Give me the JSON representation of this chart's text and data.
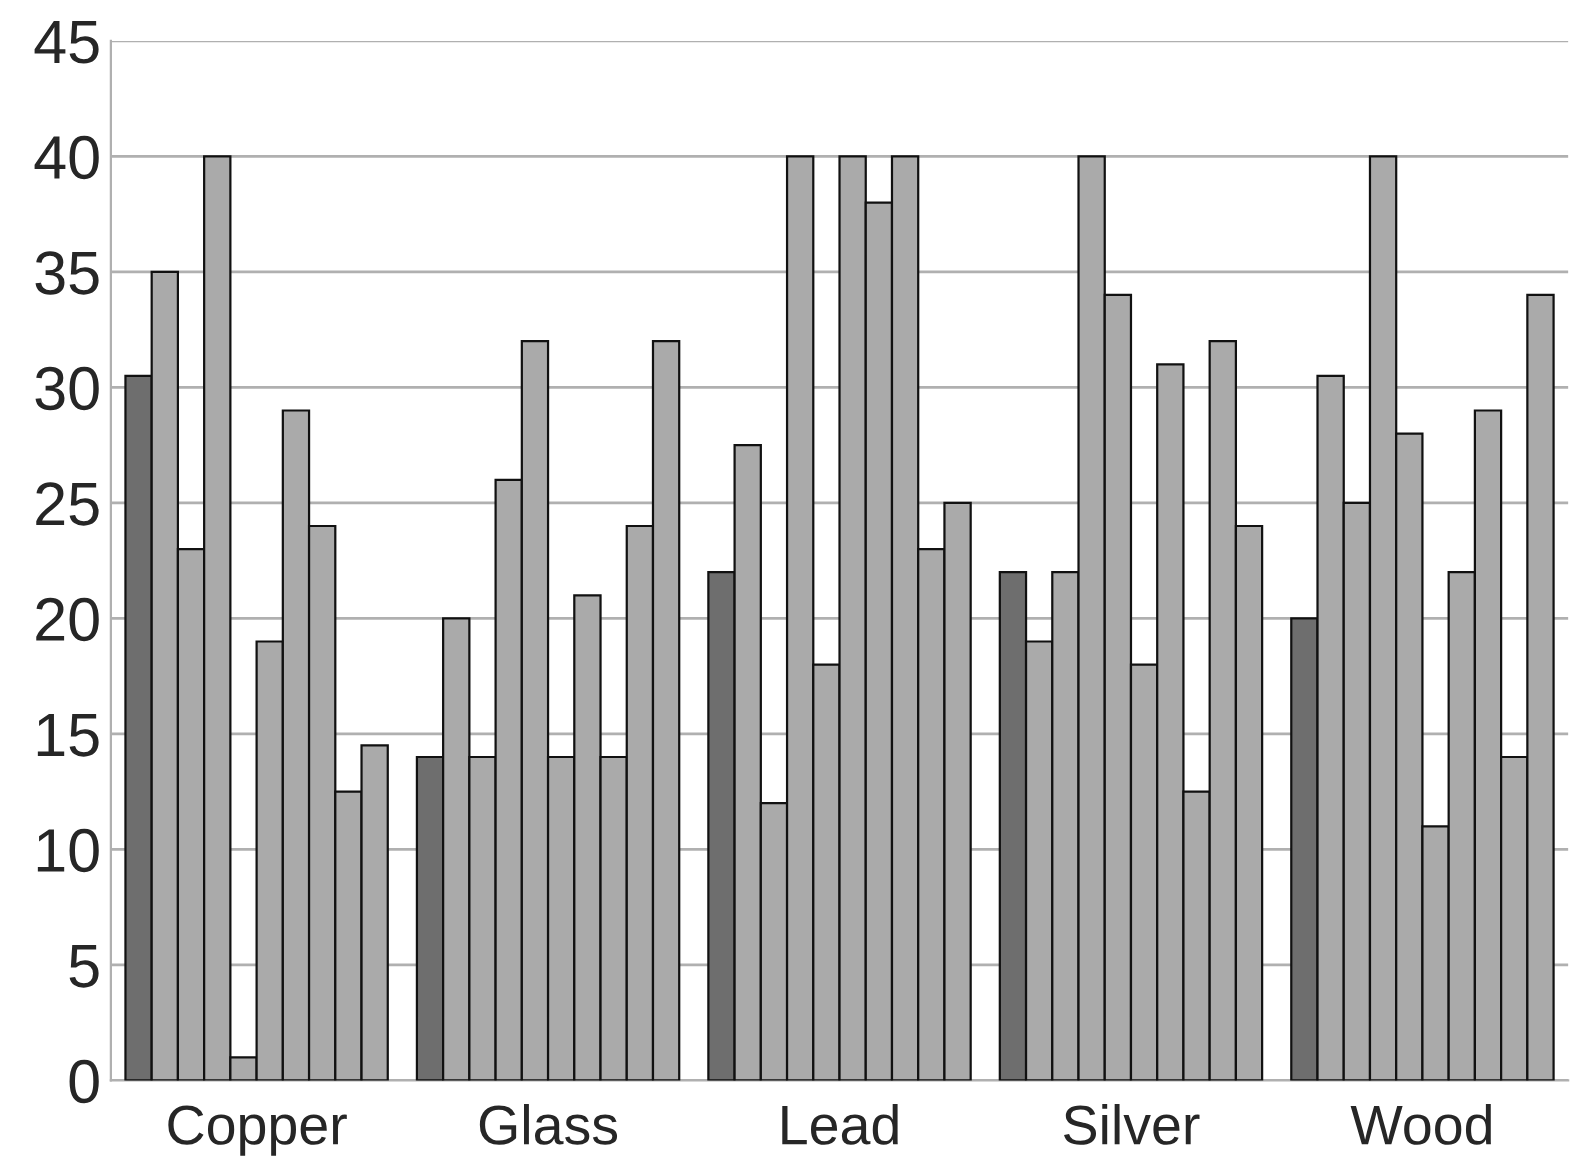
{
  "chart_data": {
    "type": "bar",
    "categories": [
      "Copper",
      "Glass",
      "Lead",
      "Silver",
      "Wood"
    ],
    "series": [
      {
        "color": "#6e6e6e",
        "values": [
          30.5,
          14,
          22,
          22,
          20
        ]
      },
      {
        "color": "#aaaaaa",
        "values": [
          35,
          20,
          27.5,
          19,
          30.5
        ]
      },
      {
        "color": "#aaaaaa",
        "values": [
          23,
          14,
          12,
          22,
          25
        ]
      },
      {
        "color": "#aaaaaa",
        "values": [
          40,
          26,
          40,
          40,
          40
        ]
      },
      {
        "color": "#aaaaaa",
        "values": [
          1,
          32,
          18,
          34,
          28
        ]
      },
      {
        "color": "#aaaaaa",
        "values": [
          19,
          14,
          40,
          18,
          11
        ]
      },
      {
        "color": "#aaaaaa",
        "values": [
          29,
          21,
          38,
          31,
          22
        ]
      },
      {
        "color": "#aaaaaa",
        "values": [
          24,
          14,
          40,
          12.5,
          29
        ]
      },
      {
        "color": "#aaaaaa",
        "values": [
          12.5,
          24,
          23,
          32,
          14
        ]
      },
      {
        "color": "#aaaaaa",
        "values": [
          14.5,
          32,
          25,
          24,
          34
        ]
      }
    ],
    "ylim": [
      0,
      45
    ],
    "yticks": [
      0,
      5,
      10,
      15,
      20,
      25,
      30,
      35,
      40,
      45
    ],
    "grid": "y",
    "legend": false
  }
}
